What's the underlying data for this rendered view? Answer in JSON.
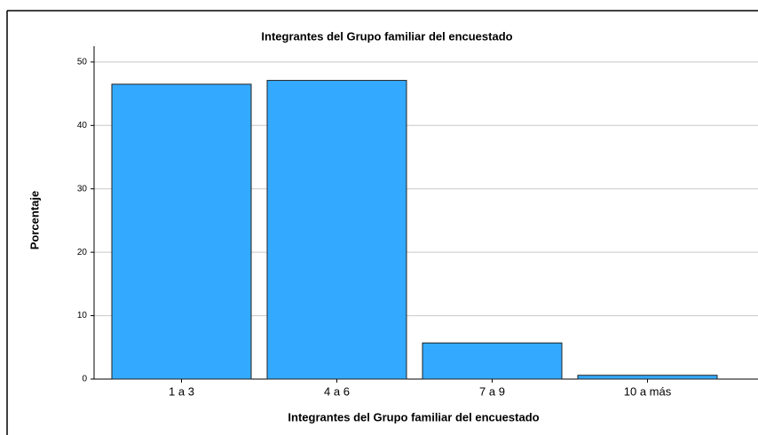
{
  "chart_data": {
    "type": "bar",
    "title": "Integrantes del Grupo familiar del encuestado",
    "x_label": "Integrantes del Grupo familiar del encuestado",
    "y_label": "Porcentaje",
    "categories": [
      "1 a 3",
      "4 a 6",
      "7 a 9",
      "10 a más"
    ],
    "values": [
      46.5,
      47.1,
      5.7,
      0.6
    ],
    "color": "#33aaff",
    "ylim": [
      0,
      52.5
    ],
    "yticks": [
      0,
      10,
      20,
      30,
      40,
      50
    ],
    "grid": true
  }
}
